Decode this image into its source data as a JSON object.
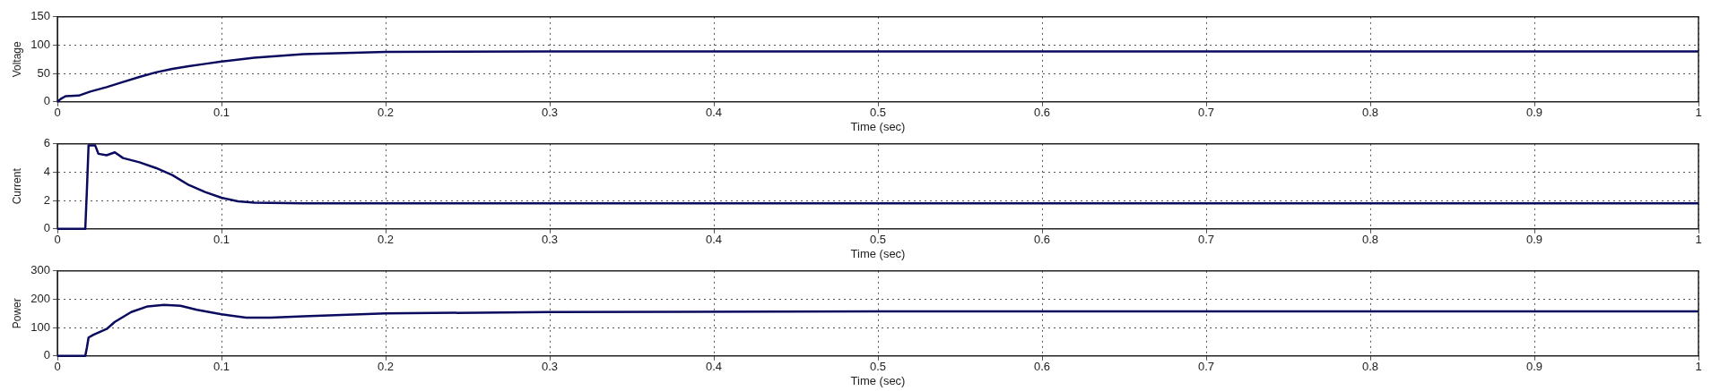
{
  "chart_data": [
    {
      "type": "line",
      "xlabel": "Time (sec)",
      "ylabel": "Voltage",
      "color": "#0a0a5e",
      "grid": true,
      "xlim": [
        0,
        1
      ],
      "ylim": [
        0,
        150
      ],
      "xticks": [
        0,
        0.1,
        0.2,
        0.3,
        0.4,
        0.5,
        0.6,
        0.7,
        0.8,
        0.9,
        1
      ],
      "yticks": [
        0,
        50,
        100,
        150
      ],
      "x": [
        0,
        0.002,
        0.005,
        0.013,
        0.02,
        0.03,
        0.04,
        0.05,
        0.06,
        0.07,
        0.08,
        0.09,
        0.1,
        0.12,
        0.15,
        0.2,
        0.3,
        0.5,
        0.7,
        1
      ],
      "values": [
        0,
        5,
        10,
        11,
        18,
        26,
        35,
        44,
        52,
        58,
        63,
        67,
        71,
        78,
        84,
        88,
        89,
        89,
        89,
        89
      ]
    },
    {
      "type": "line",
      "xlabel": "Time (sec)",
      "ylabel": "Current",
      "color": "#0a0a5e",
      "grid": true,
      "xlim": [
        0,
        1
      ],
      "ylim": [
        0,
        6
      ],
      "xticks": [
        0,
        0.1,
        0.2,
        0.3,
        0.4,
        0.5,
        0.6,
        0.7,
        0.8,
        0.9,
        1
      ],
      "yticks": [
        0,
        2,
        4,
        6
      ],
      "x": [
        0,
        0.017,
        0.018,
        0.019,
        0.023,
        0.025,
        0.03,
        0.035,
        0.04,
        0.05,
        0.06,
        0.07,
        0.08,
        0.09,
        0.1,
        0.11,
        0.12,
        0.15,
        0.3,
        0.5,
        0.7,
        1
      ],
      "values": [
        0,
        0,
        2.8,
        5.9,
        5.9,
        5.3,
        5.2,
        5.4,
        5.0,
        4.7,
        4.3,
        3.8,
        3.1,
        2.6,
        2.2,
        1.95,
        1.85,
        1.8,
        1.8,
        1.8,
        1.8,
        1.8
      ]
    },
    {
      "type": "line",
      "xlabel": "Time (sec)",
      "ylabel": "Power",
      "color": "#0a0a5e",
      "grid": true,
      "xlim": [
        0,
        1
      ],
      "ylim": [
        0,
        300
      ],
      "xticks": [
        0,
        0.1,
        0.2,
        0.3,
        0.4,
        0.5,
        0.6,
        0.7,
        0.8,
        0.9,
        1
      ],
      "yticks": [
        0,
        100,
        200,
        300
      ],
      "x": [
        0,
        0.017,
        0.018,
        0.019,
        0.022,
        0.03,
        0.035,
        0.045,
        0.055,
        0.065,
        0.075,
        0.085,
        0.1,
        0.115,
        0.13,
        0.15,
        0.2,
        0.3,
        0.5,
        0.7,
        1
      ],
      "values": [
        0,
        0,
        30,
        65,
        75,
        95,
        120,
        155,
        175,
        180,
        177,
        163,
        147,
        135,
        135,
        140,
        150,
        155,
        157,
        157,
        157
      ]
    }
  ]
}
